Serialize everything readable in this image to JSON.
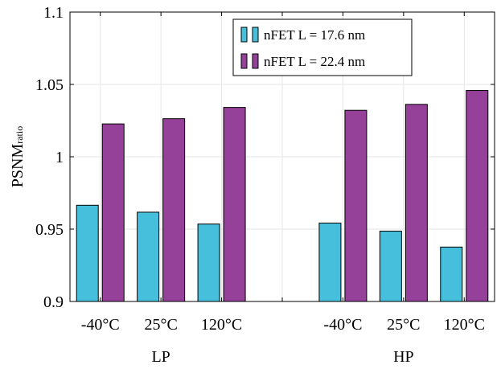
{
  "chart_data": {
    "type": "bar",
    "categories": [
      "-40°C",
      "25°C",
      "120°C",
      "",
      "-40°C",
      "25°C",
      "120°C"
    ],
    "groups": [
      "LP",
      "HP"
    ],
    "series": [
      {
        "name": "nFET L = 17.6 nm",
        "color": "#45bfdb",
        "values": [
          0.9665,
          0.9617,
          0.9535,
          0.9,
          0.9542,
          0.9486,
          0.9376
        ]
      },
      {
        "name": "nFET L = 22.4 nm",
        "color": "#954199",
        "values": [
          1.0227,
          1.0263,
          1.0341,
          0.9,
          1.0321,
          1.0362,
          1.0458
        ]
      }
    ],
    "title": "",
    "xlabel": "",
    "ylabel_main": "PSNM",
    "ylabel_sub": "ratio",
    "ylim": [
      0.9,
      1.1
    ],
    "yticks": [
      "0.9",
      "0.95",
      "1",
      "1.05",
      "1.1"
    ],
    "grid": true,
    "legend_position": "top-right"
  }
}
